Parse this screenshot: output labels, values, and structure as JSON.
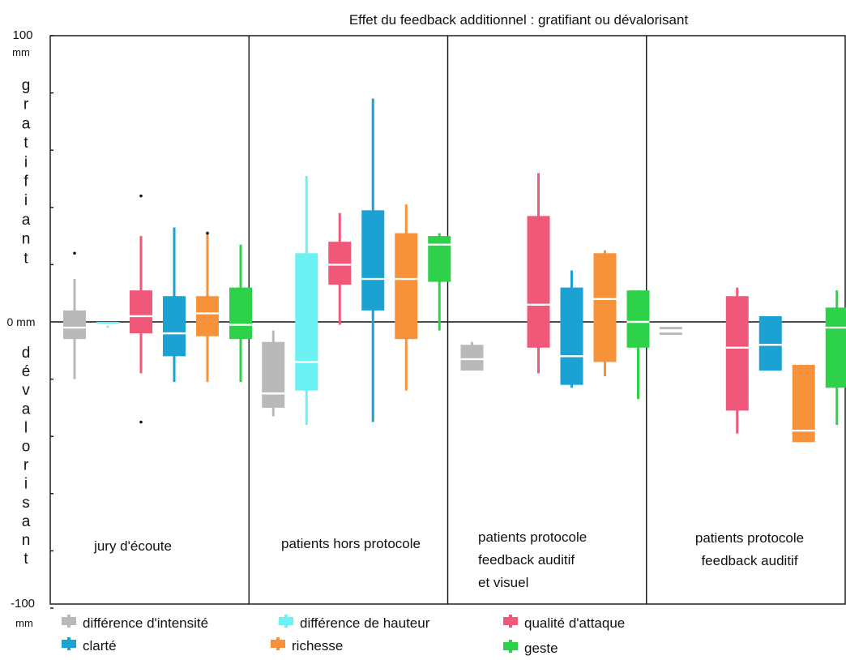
{
  "chart_data": {
    "type": "boxplot",
    "title": "Effet du feedback additionnel : gratifiant ou dévalorisant",
    "y_axis": {
      "top_label": [
        "100",
        "mm"
      ],
      "zero_label": "0 mm",
      "bottom_label": [
        "-100",
        "mm"
      ],
      "positive_label": "gratifiant",
      "negative_label": "dévalorisant",
      "ylim": [
        -100,
        100
      ],
      "tick_step": 20
    },
    "panels": [
      {
        "name_lines": [
          "jury d'écoute"
        ],
        "boxes": [
          {
            "series": "différence d'intensité",
            "whisker_low": -20,
            "q1": -6,
            "median": -2,
            "q3": 4,
            "whisker_high": 15,
            "outliers": [
              24
            ]
          },
          {
            "series": "différence de hauteur",
            "whisker_low": -2,
            "q1": -1,
            "median": -1,
            "q3": 0,
            "whisker_high": 0,
            "outliers": []
          },
          {
            "series": "qualité d'attaque",
            "whisker_low": -18,
            "q1": -4,
            "median": 2,
            "q3": 11,
            "whisker_high": 30,
            "outliers": [
              44,
              -35
            ]
          },
          {
            "series": "clarté",
            "whisker_low": -21,
            "q1": -12,
            "median": -4,
            "q3": 9,
            "whisker_high": 33,
            "outliers": []
          },
          {
            "series": "richesse",
            "whisker_low": -21,
            "q1": -5,
            "median": 3,
            "q3": 9,
            "whisker_high": 31,
            "outliers": [
              31
            ]
          },
          {
            "series": "geste",
            "whisker_low": -21,
            "q1": -6,
            "median": -1,
            "q3": 12,
            "whisker_high": 27,
            "outliers": []
          }
        ]
      },
      {
        "name_lines": [
          "patients hors protocole"
        ],
        "boxes": [
          {
            "series": "différence d'intensité",
            "whisker_low": -33,
            "q1": -30,
            "median": -25,
            "q3": -7,
            "whisker_high": -3,
            "outliers": []
          },
          {
            "series": "différence de hauteur",
            "whisker_low": -36,
            "q1": -24,
            "median": -14,
            "q3": 24,
            "whisker_high": 51,
            "outliers": []
          },
          {
            "series": "qualité d'attaque",
            "whisker_low": -1,
            "q1": 13,
            "median": 20,
            "q3": 28,
            "whisker_high": 38,
            "outliers": []
          },
          {
            "series": "clarté",
            "whisker_low": -35,
            "q1": 4,
            "median": 15,
            "q3": 39,
            "whisker_high": 78,
            "outliers": []
          },
          {
            "series": "richesse",
            "whisker_low": -24,
            "q1": -6,
            "median": 15,
            "q3": 31,
            "whisker_high": 41,
            "outliers": []
          },
          {
            "series": "geste",
            "whisker_low": -3,
            "q1": 14,
            "median": 27,
            "q3": 30,
            "whisker_high": 31,
            "outliers": []
          }
        ]
      },
      {
        "name_lines": [
          "patients protocole",
          "feedback auditif",
          "et visuel"
        ],
        "boxes": [
          {
            "series": "différence d'intensité",
            "whisker_low": -17,
            "q1": -17,
            "median": -13,
            "q3": -8,
            "whisker_high": -7,
            "outliers": []
          },
          {
            "series": "différence de hauteur",
            "whisker_low": 0,
            "q1": 0,
            "median": 0,
            "q3": 0,
            "whisker_high": 0,
            "outliers": [],
            "absent": true
          },
          {
            "series": "qualité d'attaque",
            "whisker_low": -18,
            "q1": -9,
            "median": 6,
            "q3": 37,
            "whisker_high": 52,
            "outliers": []
          },
          {
            "series": "clarté",
            "whisker_low": -23,
            "q1": -22,
            "median": -12,
            "q3": 12,
            "whisker_high": 18,
            "outliers": []
          },
          {
            "series": "richesse",
            "whisker_low": -19,
            "q1": -14,
            "median": 8,
            "q3": 24,
            "whisker_high": 25,
            "outliers": []
          },
          {
            "series": "geste",
            "whisker_low": -27,
            "q1": -9,
            "median": 0,
            "q3": 11,
            "whisker_high": 11,
            "outliers": []
          }
        ]
      },
      {
        "name_lines": [
          "patients protocole",
          "feedback auditif"
        ],
        "boxes": [
          {
            "series": "différence d'intensité",
            "whisker_low": -4,
            "q1": -4,
            "median": -3,
            "q3": -2,
            "whisker_high": -2,
            "outliers": [],
            "double_line": true
          },
          {
            "series": "différence de hauteur",
            "whisker_low": 0,
            "q1": 0,
            "median": 0,
            "q3": 0,
            "whisker_high": 0,
            "outliers": [],
            "absent": true
          },
          {
            "series": "qualité d'attaque",
            "whisker_low": -39,
            "q1": -31,
            "median": -9,
            "q3": 9,
            "whisker_high": 12,
            "outliers": []
          },
          {
            "series": "clarté",
            "whisker_low": -17,
            "q1": -17,
            "median": -8,
            "q3": 2,
            "whisker_high": 2,
            "outliers": []
          },
          {
            "series": "richesse",
            "whisker_low": -42,
            "q1": -42,
            "median": -38,
            "q3": -15,
            "whisker_high": -15,
            "outliers": []
          },
          {
            "series": "geste",
            "whisker_low": -36,
            "q1": -23,
            "median": -2,
            "q3": 5,
            "whisker_high": 11,
            "outliers": []
          }
        ]
      }
    ],
    "legend": [
      {
        "name": "différence d'intensité",
        "color": "#b9b9b9"
      },
      {
        "name": "différence de hauteur",
        "color": "#6cf2f2"
      },
      {
        "name": "qualité d'attaque",
        "color": "#f0587a"
      },
      {
        "name": "clarté",
        "color": "#1ba1d2"
      },
      {
        "name": "richesse",
        "color": "#f7923a"
      },
      {
        "name": "geste",
        "color": "#2ed14a"
      }
    ]
  }
}
